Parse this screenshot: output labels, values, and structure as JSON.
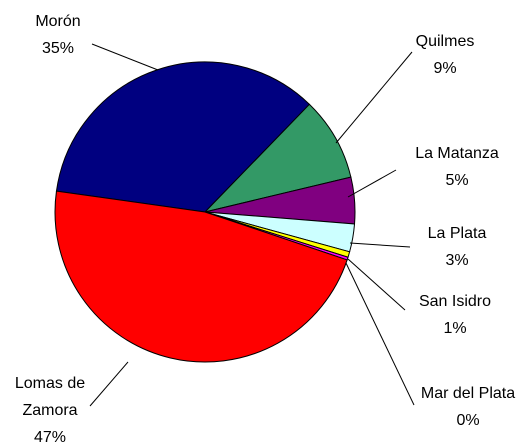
{
  "chart_data": {
    "type": "pie",
    "categories": [
      "Morón",
      "Quilmes",
      "La Matanza",
      "La Plata",
      "San Isidro",
      "Mar del Plata",
      "Lomas de Zamora"
    ],
    "values": [
      35,
      9,
      5,
      3,
      0.6,
      0.3,
      47
    ],
    "value_labels": [
      "35%",
      "9%",
      "5%",
      "3%",
      "1%",
      "0%",
      "47%"
    ],
    "colors": [
      "#000080",
      "#339966",
      "#800080",
      "#ccffff",
      "#ffff00",
      "#ff00ff",
      "#ff0000"
    ]
  }
}
